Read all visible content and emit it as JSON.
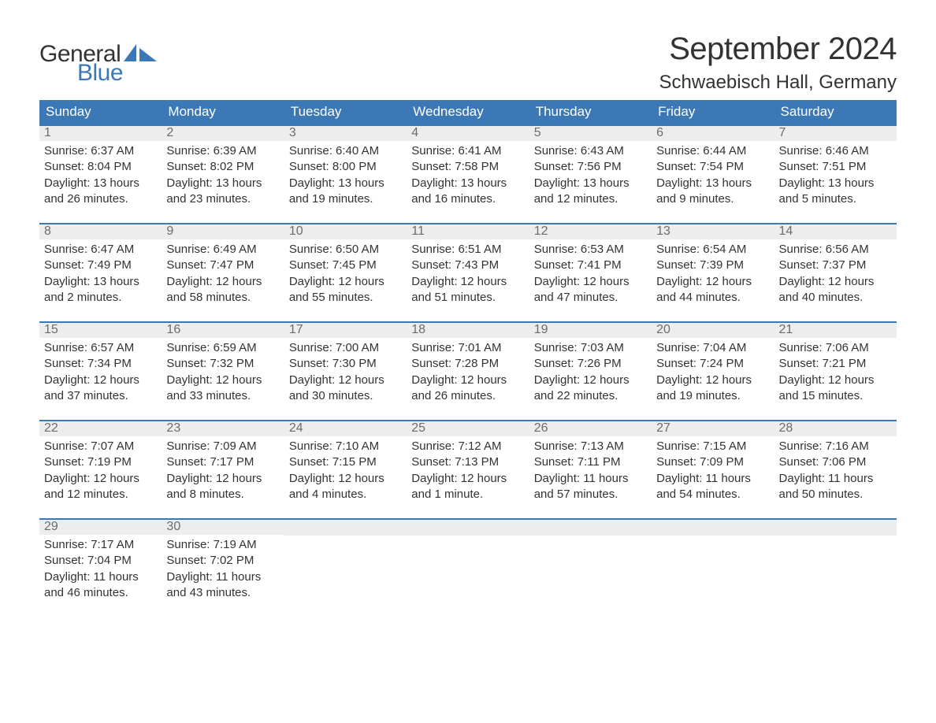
{
  "logo": {
    "text_general": "General",
    "text_blue": "Blue"
  },
  "title": {
    "month_year": "September 2024",
    "location": "Schwaebisch Hall, Germany"
  },
  "colors": {
    "header_bg": "#3b78b5",
    "header_text": "#ffffff",
    "daynum_bg": "#ededed",
    "daynum_text": "#6c6c6c",
    "rule": "#3b78b5",
    "body_text": "#333333",
    "background": "#ffffff"
  },
  "weekdays": [
    "Sunday",
    "Monday",
    "Tuesday",
    "Wednesday",
    "Thursday",
    "Friday",
    "Saturday"
  ],
  "weeks": [
    [
      {
        "num": "1",
        "sunrise": "Sunrise: 6:37 AM",
        "sunset": "Sunset: 8:04 PM",
        "daylight": "Daylight: 13 hours and 26 minutes."
      },
      {
        "num": "2",
        "sunrise": "Sunrise: 6:39 AM",
        "sunset": "Sunset: 8:02 PM",
        "daylight": "Daylight: 13 hours and 23 minutes."
      },
      {
        "num": "3",
        "sunrise": "Sunrise: 6:40 AM",
        "sunset": "Sunset: 8:00 PM",
        "daylight": "Daylight: 13 hours and 19 minutes."
      },
      {
        "num": "4",
        "sunrise": "Sunrise: 6:41 AM",
        "sunset": "Sunset: 7:58 PM",
        "daylight": "Daylight: 13 hours and 16 minutes."
      },
      {
        "num": "5",
        "sunrise": "Sunrise: 6:43 AM",
        "sunset": "Sunset: 7:56 PM",
        "daylight": "Daylight: 13 hours and 12 minutes."
      },
      {
        "num": "6",
        "sunrise": "Sunrise: 6:44 AM",
        "sunset": "Sunset: 7:54 PM",
        "daylight": "Daylight: 13 hours and 9 minutes."
      },
      {
        "num": "7",
        "sunrise": "Sunrise: 6:46 AM",
        "sunset": "Sunset: 7:51 PM",
        "daylight": "Daylight: 13 hours and 5 minutes."
      }
    ],
    [
      {
        "num": "8",
        "sunrise": "Sunrise: 6:47 AM",
        "sunset": "Sunset: 7:49 PM",
        "daylight": "Daylight: 13 hours and 2 minutes."
      },
      {
        "num": "9",
        "sunrise": "Sunrise: 6:49 AM",
        "sunset": "Sunset: 7:47 PM",
        "daylight": "Daylight: 12 hours and 58 minutes."
      },
      {
        "num": "10",
        "sunrise": "Sunrise: 6:50 AM",
        "sunset": "Sunset: 7:45 PM",
        "daylight": "Daylight: 12 hours and 55 minutes."
      },
      {
        "num": "11",
        "sunrise": "Sunrise: 6:51 AM",
        "sunset": "Sunset: 7:43 PM",
        "daylight": "Daylight: 12 hours and 51 minutes."
      },
      {
        "num": "12",
        "sunrise": "Sunrise: 6:53 AM",
        "sunset": "Sunset: 7:41 PM",
        "daylight": "Daylight: 12 hours and 47 minutes."
      },
      {
        "num": "13",
        "sunrise": "Sunrise: 6:54 AM",
        "sunset": "Sunset: 7:39 PM",
        "daylight": "Daylight: 12 hours and 44 minutes."
      },
      {
        "num": "14",
        "sunrise": "Sunrise: 6:56 AM",
        "sunset": "Sunset: 7:37 PM",
        "daylight": "Daylight: 12 hours and 40 minutes."
      }
    ],
    [
      {
        "num": "15",
        "sunrise": "Sunrise: 6:57 AM",
        "sunset": "Sunset: 7:34 PM",
        "daylight": "Daylight: 12 hours and 37 minutes."
      },
      {
        "num": "16",
        "sunrise": "Sunrise: 6:59 AM",
        "sunset": "Sunset: 7:32 PM",
        "daylight": "Daylight: 12 hours and 33 minutes."
      },
      {
        "num": "17",
        "sunrise": "Sunrise: 7:00 AM",
        "sunset": "Sunset: 7:30 PM",
        "daylight": "Daylight: 12 hours and 30 minutes."
      },
      {
        "num": "18",
        "sunrise": "Sunrise: 7:01 AM",
        "sunset": "Sunset: 7:28 PM",
        "daylight": "Daylight: 12 hours and 26 minutes."
      },
      {
        "num": "19",
        "sunrise": "Sunrise: 7:03 AM",
        "sunset": "Sunset: 7:26 PM",
        "daylight": "Daylight: 12 hours and 22 minutes."
      },
      {
        "num": "20",
        "sunrise": "Sunrise: 7:04 AM",
        "sunset": "Sunset: 7:24 PM",
        "daylight": "Daylight: 12 hours and 19 minutes."
      },
      {
        "num": "21",
        "sunrise": "Sunrise: 7:06 AM",
        "sunset": "Sunset: 7:21 PM",
        "daylight": "Daylight: 12 hours and 15 minutes."
      }
    ],
    [
      {
        "num": "22",
        "sunrise": "Sunrise: 7:07 AM",
        "sunset": "Sunset: 7:19 PM",
        "daylight": "Daylight: 12 hours and 12 minutes."
      },
      {
        "num": "23",
        "sunrise": "Sunrise: 7:09 AM",
        "sunset": "Sunset: 7:17 PM",
        "daylight": "Daylight: 12 hours and 8 minutes."
      },
      {
        "num": "24",
        "sunrise": "Sunrise: 7:10 AM",
        "sunset": "Sunset: 7:15 PM",
        "daylight": "Daylight: 12 hours and 4 minutes."
      },
      {
        "num": "25",
        "sunrise": "Sunrise: 7:12 AM",
        "sunset": "Sunset: 7:13 PM",
        "daylight": "Daylight: 12 hours and 1 minute."
      },
      {
        "num": "26",
        "sunrise": "Sunrise: 7:13 AM",
        "sunset": "Sunset: 7:11 PM",
        "daylight": "Daylight: 11 hours and 57 minutes."
      },
      {
        "num": "27",
        "sunrise": "Sunrise: 7:15 AM",
        "sunset": "Sunset: 7:09 PM",
        "daylight": "Daylight: 11 hours and 54 minutes."
      },
      {
        "num": "28",
        "sunrise": "Sunrise: 7:16 AM",
        "sunset": "Sunset: 7:06 PM",
        "daylight": "Daylight: 11 hours and 50 minutes."
      }
    ],
    [
      {
        "num": "29",
        "sunrise": "Sunrise: 7:17 AM",
        "sunset": "Sunset: 7:04 PM",
        "daylight": "Daylight: 11 hours and 46 minutes."
      },
      {
        "num": "30",
        "sunrise": "Sunrise: 7:19 AM",
        "sunset": "Sunset: 7:02 PM",
        "daylight": "Daylight: 11 hours and 43 minutes."
      },
      {
        "empty": true
      },
      {
        "empty": true
      },
      {
        "empty": true
      },
      {
        "empty": true
      },
      {
        "empty": true
      }
    ]
  ]
}
